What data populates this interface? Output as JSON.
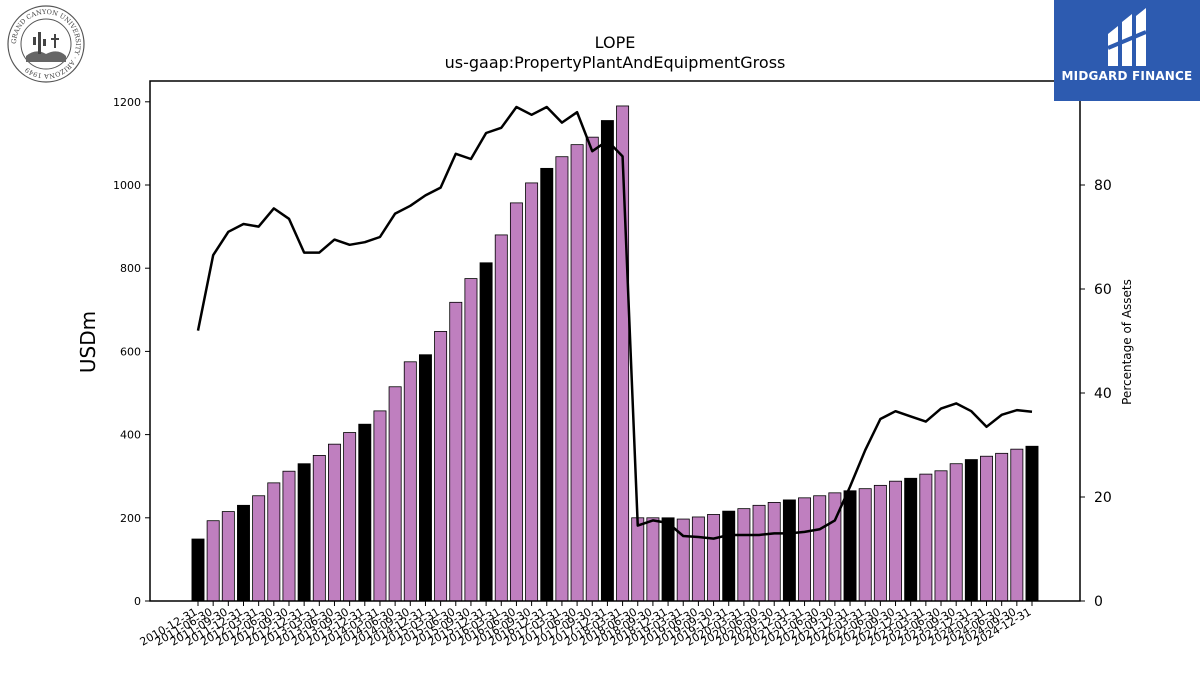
{
  "logos": {
    "left_text": "GRAND CANYON UNIVERSITY · ARIZONA 1949",
    "right_brand": "MIDGARD FINANCE"
  },
  "chart_data": {
    "type": "bar",
    "title": "LOPE",
    "subtitle": "us-gaap:PropertyPlantAndEquipmentGross",
    "ylabel": "USDm",
    "y2label": "Percentage of Assets",
    "ylim": [
      0,
      1250
    ],
    "y2lim": [
      0,
      100
    ],
    "yticks": [
      0,
      200,
      400,
      600,
      800,
      1000,
      1200
    ],
    "y2ticks": [
      0,
      20,
      40,
      60,
      80
    ],
    "colors": {
      "bar": "#bf7fbf",
      "annual_bar": "#000000",
      "line": "#000000"
    },
    "categories": [
      "2010-12-31",
      "2011-06-30",
      "2011-09-30",
      "2011-12-31",
      "2012-03-31",
      "2012-06-30",
      "2012-09-30",
      "2012-12-31",
      "2013-03-31",
      "2013-06-30",
      "2013-09-30",
      "2013-12-31",
      "2014-03-31",
      "2014-06-30",
      "2014-09-30",
      "2014-12-31",
      "2015-03-31",
      "2015-06-30",
      "2015-09-30",
      "2015-12-31",
      "2016-03-31",
      "2016-06-30",
      "2016-09-30",
      "2016-12-31",
      "2017-03-31",
      "2017-06-30",
      "2017-09-30",
      "2017-12-31",
      "2018-03-31",
      "2018-06-30",
      "2018-09-30",
      "2018-12-31",
      "2019-03-31",
      "2019-06-30",
      "2019-09-30",
      "2019-12-31",
      "2020-03-31",
      "2020-06-30",
      "2020-09-30",
      "2020-12-31",
      "2021-03-31",
      "2021-06-30",
      "2021-09-30",
      "2021-12-31",
      "2022-03-31",
      "2022-06-30",
      "2022-09-30",
      "2022-12-31",
      "2023-03-31",
      "2023-06-30",
      "2023-09-30",
      "2023-12-31",
      "2024-03-31",
      "2024-06-30",
      "2024-09-30",
      "2024-12-31"
    ],
    "series": [
      {
        "kind": "bar",
        "values": [
          149,
          193,
          215,
          230,
          253,
          284,
          312,
          330,
          350,
          377,
          405,
          425,
          457,
          515,
          575,
          592,
          648,
          718,
          775,
          813,
          880,
          957,
          1005,
          1040,
          1068,
          1097,
          1115,
          1155,
          1190,
          200,
          200,
          200,
          197,
          202,
          208,
          216,
          222,
          230,
          237,
          243,
          248,
          253,
          260,
          265,
          270,
          278,
          288,
          295,
          305,
          313,
          330,
          340,
          348,
          355,
          365,
          372
        ],
        "annual": [
          true,
          false,
          false,
          true,
          false,
          false,
          false,
          true,
          false,
          false,
          false,
          true,
          false,
          false,
          false,
          true,
          false,
          false,
          false,
          true,
          false,
          false,
          false,
          true,
          false,
          false,
          false,
          true,
          false,
          false,
          false,
          true,
          false,
          false,
          false,
          true,
          false,
          false,
          false,
          true,
          false,
          false,
          false,
          true,
          false,
          false,
          false,
          true,
          false,
          false,
          false,
          true,
          false,
          false,
          false,
          true
        ]
      },
      {
        "kind": "line",
        "axis": "y2",
        "values": [
          52,
          66.5,
          71,
          72.5,
          72,
          75.5,
          73.5,
          67,
          67,
          69.5,
          68.5,
          69,
          70,
          74.5,
          76,
          78,
          79.5,
          86,
          85,
          90,
          91,
          95,
          93.5,
          95,
          92,
          94,
          86.5,
          88.5,
          85.5,
          14.5,
          15.5,
          15,
          12.5,
          12.3,
          12,
          12.7,
          12.7,
          12.7,
          13,
          13,
          13.3,
          13.8,
          15.5,
          22,
          29,
          35,
          36.5,
          35.5,
          34.5,
          37,
          38,
          36.5,
          33.5,
          35.8,
          36.7,
          36.4
        ]
      }
    ]
  }
}
